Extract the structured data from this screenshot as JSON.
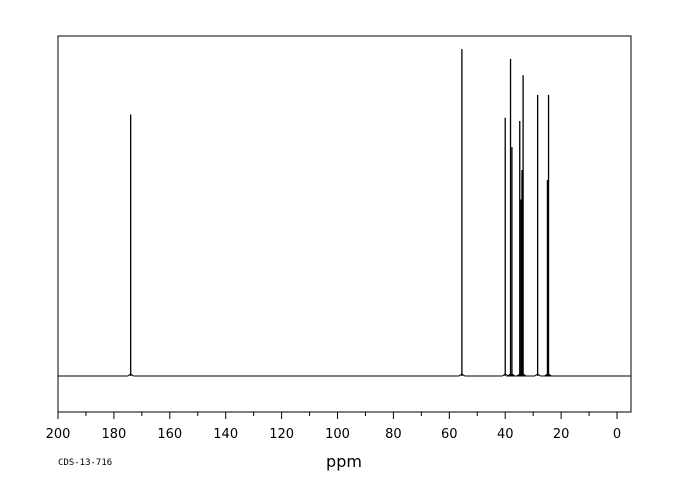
{
  "chart_data": {
    "type": "line",
    "title": "",
    "xlabel": "ppm",
    "ylabel": "",
    "xlim": [
      200,
      -5
    ],
    "ylim": [
      -0.11,
      1.04
    ],
    "x_reversed": true,
    "grid": false,
    "legend": "none",
    "tick_values": [
      200,
      180,
      160,
      140,
      120,
      100,
      80,
      60,
      40,
      20,
      0
    ],
    "tick_labels": [
      "200",
      "180",
      "160",
      "140",
      "120",
      "100",
      "80",
      "60",
      "40",
      "20",
      "0"
    ],
    "peaks": [
      {
        "x": 174.0,
        "y": 0.8
      },
      {
        "x": 55.5,
        "y": 1.0
      },
      {
        "x": 40.0,
        "y": 0.79
      },
      {
        "x": 38.1,
        "y": 0.97
      },
      {
        "x": 37.6,
        "y": 0.7
      },
      {
        "x": 34.8,
        "y": 0.78
      },
      {
        "x": 34.4,
        "y": 0.54
      },
      {
        "x": 34.0,
        "y": 0.63
      },
      {
        "x": 33.6,
        "y": 0.92
      },
      {
        "x": 28.4,
        "y": 0.86
      },
      {
        "x": 24.9,
        "y": 0.6
      },
      {
        "x": 24.5,
        "y": 0.86
      }
    ],
    "sample_code": "CDS-13-716"
  },
  "colors": {
    "line": "#000000",
    "frame": "#000000",
    "background": "#ffffff"
  }
}
